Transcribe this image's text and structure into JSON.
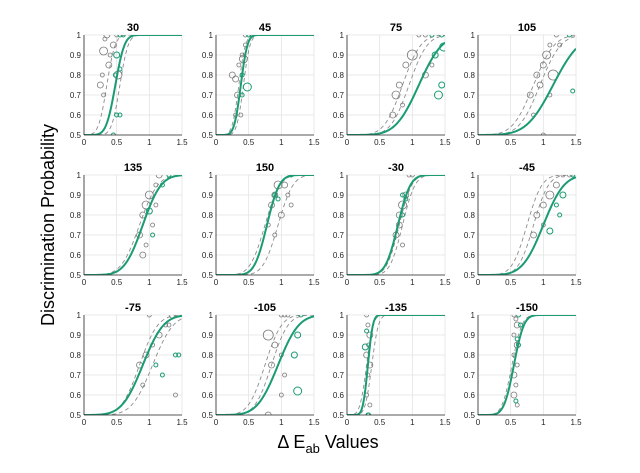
{
  "chart_data": {
    "type": "scatter",
    "ylabel": "Discrimination Probability",
    "xlabel_main": "Δ E",
    "xlabel_sub": "ab",
    "xlabel_tail": " Values",
    "xlim": [
      0,
      1.5
    ],
    "ylim": [
      0.5,
      1
    ],
    "xticks": [
      0,
      0.5,
      1,
      1.5
    ],
    "xtick_labels": [
      "0",
      "0.5",
      "1",
      "1.5"
    ],
    "yticks": [
      0.5,
      0.6,
      0.7,
      0.8,
      0.9,
      1
    ],
    "ytick_labels": [
      "0.5",
      "0.6",
      "0.7",
      "0.8",
      "0.9",
      "1"
    ],
    "grid": true,
    "colors": {
      "green": "#1a9b74",
      "gray": "#7a7a7a",
      "dashed": "#8c8c8c"
    },
    "panels": [
      {
        "title": "30",
        "green_curve": {
          "mu": 0.48,
          "s": 0.11
        },
        "dash_curves": [
          {
            "mu": 0.35,
            "s": 0.1
          },
          {
            "mu": 0.55,
            "s": 0.1
          }
        ],
        "gray_points": [
          [
            0.3,
            0.92,
            4
          ],
          [
            0.32,
            0.98,
            2
          ],
          [
            0.35,
            1.0,
            3
          ],
          [
            0.28,
            0.8,
            2
          ],
          [
            0.38,
            0.85,
            3
          ],
          [
            0.4,
            0.9,
            2
          ],
          [
            0.45,
            0.95,
            3
          ],
          [
            0.5,
            1.0,
            2
          ],
          [
            0.25,
            0.75,
            3
          ],
          [
            0.3,
            0.7,
            2
          ],
          [
            0.52,
            0.8,
            4
          ]
        ],
        "green_points": [
          [
            0.55,
            1.0,
            2
          ],
          [
            0.6,
            1.0,
            2
          ],
          [
            0.5,
            0.9,
            3
          ],
          [
            0.55,
            0.83,
            2
          ],
          [
            0.48,
            0.8,
            2
          ],
          [
            0.5,
            0.6,
            2
          ],
          [
            0.55,
            0.6,
            2
          ],
          [
            0.45,
            0.5,
            2
          ]
        ]
      },
      {
        "title": "45",
        "green_curve": {
          "mu": 0.38,
          "s": 0.08
        },
        "dash_curves": [
          {
            "mu": 0.35,
            "s": 0.08
          },
          {
            "mu": 0.42,
            "s": 0.08
          }
        ],
        "gray_points": [
          [
            0.25,
            0.8,
            3
          ],
          [
            0.3,
            0.78,
            3
          ],
          [
            0.35,
            0.85,
            2
          ],
          [
            0.4,
            0.9,
            2
          ],
          [
            0.45,
            0.95,
            2
          ],
          [
            0.45,
            1.0,
            2
          ],
          [
            0.33,
            0.7,
            3
          ],
          [
            0.3,
            0.6,
            2
          ],
          [
            0.38,
            0.6,
            2
          ],
          [
            0.42,
            0.88,
            4
          ]
        ],
        "green_points": [
          [
            0.5,
            1.0,
            2
          ],
          [
            0.55,
            1.0,
            2
          ],
          [
            0.4,
            0.8,
            2
          ],
          [
            0.48,
            0.74,
            4
          ],
          [
            0.4,
            0.7,
            2
          ]
        ]
      },
      {
        "title": "75",
        "green_curve": {
          "mu": 1.1,
          "s": 0.28
        },
        "dash_curves": [
          {
            "mu": 0.85,
            "s": 0.22
          },
          {
            "mu": 0.95,
            "s": 0.22
          }
        ],
        "gray_points": [
          [
            0.75,
            0.7,
            4
          ],
          [
            0.8,
            0.75,
            3
          ],
          [
            0.9,
            0.85,
            3
          ],
          [
            1.0,
            0.9,
            5
          ],
          [
            1.1,
            1.0,
            2
          ],
          [
            1.2,
            1.0,
            2
          ],
          [
            0.85,
            0.65,
            2
          ],
          [
            1.2,
            0.8,
            3
          ],
          [
            1.3,
            0.85,
            2
          ],
          [
            0.7,
            0.6,
            3
          ]
        ],
        "green_points": [
          [
            1.3,
            1.0,
            2
          ],
          [
            1.45,
            1.0,
            2
          ],
          [
            1.35,
            0.9,
            3
          ],
          [
            1.4,
            0.7,
            4
          ],
          [
            1.48,
            0.94,
            4
          ],
          [
            1.45,
            0.75,
            3
          ]
        ]
      },
      {
        "title": "105",
        "green_curve": {
          "mu": 1.15,
          "s": 0.32
        },
        "dash_curves": [
          {
            "mu": 0.85,
            "s": 0.25
          },
          {
            "mu": 0.95,
            "s": 0.25
          }
        ],
        "gray_points": [
          [
            0.8,
            0.7,
            3
          ],
          [
            0.9,
            0.8,
            3
          ],
          [
            1.0,
            0.85,
            3
          ],
          [
            1.05,
            0.9,
            4
          ],
          [
            1.1,
            0.95,
            2
          ],
          [
            1.2,
            1.0,
            2
          ],
          [
            1.15,
            0.8,
            5
          ],
          [
            0.95,
            0.75,
            3
          ],
          [
            1.25,
            0.95,
            2
          ],
          [
            0.85,
            0.6,
            2
          ],
          [
            1.1,
            0.7,
            2
          ],
          [
            1.0,
            0.5,
            2
          ]
        ],
        "green_points": [
          [
            1.4,
            1.0,
            2
          ],
          [
            1.45,
            0.72,
            2
          ]
        ]
      },
      {
        "title": "135",
        "green_curve": {
          "mu": 0.9,
          "s": 0.22
        },
        "dash_curves": [
          {
            "mu": 0.85,
            "s": 0.22
          },
          {
            "mu": 0.9,
            "s": 0.22
          }
        ],
        "gray_points": [
          [
            0.85,
            0.7,
            3
          ],
          [
            0.9,
            0.8,
            3
          ],
          [
            0.95,
            0.85,
            4
          ],
          [
            1.0,
            0.9,
            4
          ],
          [
            1.1,
            0.95,
            2
          ],
          [
            1.15,
            1.0,
            3
          ],
          [
            0.9,
            0.6,
            3
          ],
          [
            0.95,
            0.65,
            2
          ],
          [
            1.05,
            0.75,
            2
          ],
          [
            1.1,
            0.85,
            2
          ]
        ],
        "green_points": [
          [
            1.3,
            1.0,
            2
          ],
          [
            1.2,
            0.95,
            2
          ],
          [
            1.0,
            0.82,
            3
          ],
          [
            1.05,
            0.7,
            2
          ]
        ]
      },
      {
        "title": "150",
        "green_curve": {
          "mu": 0.78,
          "s": 0.15
        },
        "dash_curves": [
          {
            "mu": 0.75,
            "s": 0.18
          },
          {
            "mu": 0.95,
            "s": 0.18
          }
        ],
        "gray_points": [
          [
            0.85,
            0.85,
            3
          ],
          [
            0.9,
            0.9,
            3
          ],
          [
            0.95,
            0.95,
            4
          ],
          [
            1.05,
            0.95,
            3
          ],
          [
            1.1,
            0.9,
            2
          ],
          [
            1.15,
            0.85,
            2
          ],
          [
            0.8,
            0.75,
            2
          ],
          [
            1.0,
            0.8,
            3
          ],
          [
            0.9,
            0.7,
            2
          ]
        ],
        "green_points": [
          [
            1.15,
            1.0,
            2
          ],
          [
            0.95,
            0.88,
            2
          ],
          [
            0.9,
            0.9,
            2
          ]
        ]
      },
      {
        "title": "-30",
        "green_curve": {
          "mu": 0.78,
          "s": 0.15
        },
        "dash_curves": [
          {
            "mu": 0.8,
            "s": 0.15
          },
          {
            "mu": 0.85,
            "s": 0.15
          }
        ],
        "gray_points": [
          [
            0.8,
            0.8,
            3
          ],
          [
            0.85,
            0.85,
            4
          ],
          [
            0.9,
            0.9,
            3
          ],
          [
            0.95,
            1.0,
            2
          ],
          [
            1.0,
            1.0,
            2
          ],
          [
            0.75,
            0.7,
            3
          ],
          [
            0.85,
            0.65,
            2
          ],
          [
            0.8,
            0.75,
            3
          ]
        ],
        "green_points": [
          [
            0.85,
            0.9,
            2
          ],
          [
            0.9,
            0.88,
            2
          ],
          [
            0.85,
            0.8,
            2
          ]
        ]
      },
      {
        "title": "-45",
        "green_curve": {
          "mu": 1.0,
          "s": 0.25
        },
        "dash_curves": [
          {
            "mu": 0.75,
            "s": 0.18
          },
          {
            "mu": 0.85,
            "s": 0.18
          }
        ],
        "gray_points": [
          [
            0.9,
            0.8,
            3
          ],
          [
            1.0,
            0.85,
            3
          ],
          [
            1.1,
            0.9,
            4
          ],
          [
            1.2,
            0.95,
            3
          ],
          [
            1.3,
            1.0,
            2
          ],
          [
            1.4,
            1.0,
            2
          ],
          [
            0.85,
            0.7,
            3
          ],
          [
            1.0,
            0.75,
            2
          ]
        ],
        "green_points": [
          [
            1.45,
            1.0,
            2
          ],
          [
            1.3,
            0.9,
            3
          ],
          [
            1.2,
            0.85,
            2
          ],
          [
            1.1,
            0.72,
            3
          ],
          [
            1.25,
            0.8,
            2
          ]
        ]
      },
      {
        "title": "-75",
        "green_curve": {
          "mu": 0.9,
          "s": 0.25
        },
        "dash_curves": [
          {
            "mu": 0.85,
            "s": 0.22
          },
          {
            "mu": 1.05,
            "s": 0.25
          }
        ],
        "gray_points": [
          [
            0.85,
            0.75,
            3
          ],
          [
            0.95,
            0.8,
            3
          ],
          [
            1.05,
            0.85,
            2
          ],
          [
            1.15,
            0.9,
            3
          ],
          [
            1.25,
            0.95,
            2
          ],
          [
            1.35,
            1.0,
            3
          ],
          [
            1.0,
            1.0,
            2
          ],
          [
            0.9,
            0.65,
            2
          ],
          [
            1.4,
            0.6,
            2
          ],
          [
            1.3,
            0.95,
            2
          ]
        ],
        "green_points": [
          [
            1.4,
            0.8,
            2
          ],
          [
            1.45,
            0.8,
            2
          ],
          [
            1.1,
            0.75,
            2
          ],
          [
            1.2,
            0.7,
            2
          ]
        ]
      },
      {
        "title": "-105",
        "green_curve": {
          "mu": 0.95,
          "s": 0.25
        },
        "dash_curves": [
          {
            "mu": 0.75,
            "s": 0.2
          },
          {
            "mu": 0.85,
            "s": 0.2
          }
        ],
        "gray_points": [
          [
            0.8,
            0.9,
            5
          ],
          [
            0.9,
            0.85,
            3
          ],
          [
            1.0,
            1.0,
            2
          ],
          [
            1.05,
            1.0,
            2
          ],
          [
            1.1,
            1.0,
            2
          ],
          [
            0.85,
            0.75,
            3
          ],
          [
            1.0,
            0.8,
            2
          ],
          [
            1.05,
            0.7,
            2
          ],
          [
            0.8,
            0.5,
            3
          ],
          [
            1.0,
            0.6,
            2
          ]
        ],
        "green_points": [
          [
            1.3,
            1.0,
            2
          ],
          [
            1.25,
            0.9,
            3
          ],
          [
            1.2,
            0.8,
            3
          ],
          [
            1.25,
            0.62,
            4
          ]
        ]
      },
      {
        "title": "-135",
        "green_curve": {
          "mu": 0.32,
          "s": 0.06
        },
        "dash_curves": [
          {
            "mu": 0.3,
            "s": 0.08
          },
          {
            "mu": 0.38,
            "s": 0.08
          }
        ],
        "gray_points": [
          [
            0.3,
            1.0,
            2
          ],
          [
            0.32,
            0.95,
            2
          ],
          [
            0.35,
            0.9,
            3
          ],
          [
            0.33,
            0.85,
            2
          ],
          [
            0.3,
            0.8,
            3
          ],
          [
            0.35,
            0.75,
            3
          ],
          [
            0.32,
            0.7,
            2
          ],
          [
            0.3,
            0.6,
            2
          ],
          [
            0.35,
            0.55,
            2
          ]
        ],
        "green_points": [
          [
            0.3,
            0.92,
            2
          ],
          [
            0.28,
            0.84,
            3
          ],
          [
            0.32,
            0.5,
            2
          ],
          [
            0.33,
            0.5,
            2
          ]
        ]
      },
      {
        "title": "-150",
        "green_curve": {
          "mu": 0.55,
          "s": 0.12
        },
        "dash_curves": [
          {
            "mu": 0.52,
            "s": 0.12
          },
          {
            "mu": 0.55,
            "s": 0.12
          }
        ],
        "gray_points": [
          [
            0.55,
            1.0,
            2
          ],
          [
            0.58,
            0.98,
            2
          ],
          [
            0.6,
            0.95,
            3
          ],
          [
            0.55,
            0.9,
            2
          ],
          [
            0.6,
            0.85,
            3
          ],
          [
            0.55,
            0.8,
            2
          ],
          [
            0.6,
            0.75,
            2
          ],
          [
            0.55,
            0.7,
            3
          ],
          [
            0.58,
            0.65,
            2
          ],
          [
            0.55,
            0.6,
            3
          ],
          [
            0.6,
            0.55,
            2
          ]
        ],
        "green_points": [
          [
            0.62,
            1.0,
            2
          ],
          [
            0.65,
            0.95,
            2
          ],
          [
            0.6,
            0.88,
            2
          ],
          [
            0.62,
            0.85,
            2
          ],
          [
            0.58,
            0.57,
            2
          ]
        ]
      }
    ]
  }
}
